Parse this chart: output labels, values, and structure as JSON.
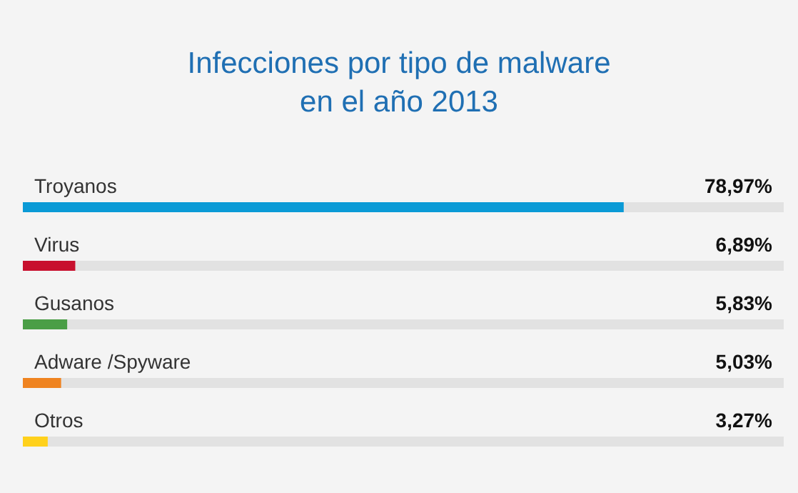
{
  "chart_data": {
    "type": "bar",
    "orientation": "horizontal",
    "title": "Infecciones por tipo de malware\nen el año 2013",
    "categories": [
      "Troyanos",
      "Virus",
      "Gusanos",
      "Adware /Spyware",
      "Otros"
    ],
    "values": [
      78.97,
      6.89,
      5.83,
      5.03,
      3.27
    ],
    "colors": [
      "#0a9ad6",
      "#c8102e",
      "#4a9e46",
      "#ef8320",
      "#ffd11c"
    ],
    "value_labels": [
      "78,97%",
      "6,89%",
      "5,83%",
      "5,03%",
      "3,27%"
    ],
    "xlim": [
      0,
      100
    ],
    "tick_labels": "y"
  }
}
